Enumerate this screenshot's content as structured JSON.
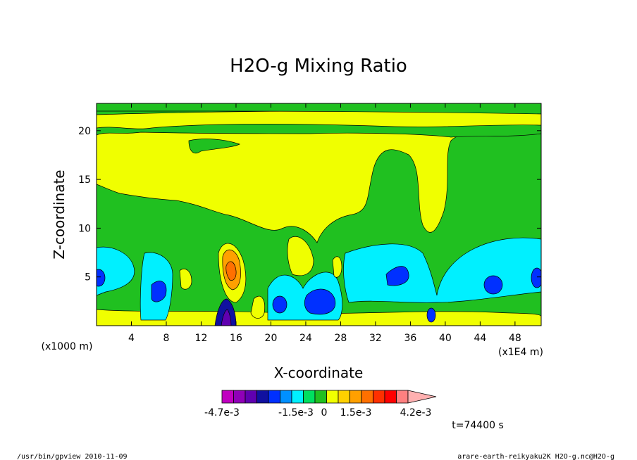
{
  "chart_data": {
    "type": "heatmap",
    "title": "H2O-g Mixing Ratio",
    "xlabel": "X-coordinate",
    "ylabel": "Z-coordinate",
    "x_unit": "(x1E4 m)",
    "y_unit": "(x1000 m)",
    "xlim": [
      0,
      51
    ],
    "ylim": [
      0,
      22.8
    ],
    "x_ticks": [
      "4",
      "8",
      "12",
      "16",
      "20",
      "24",
      "28",
      "32",
      "36",
      "40",
      "44",
      "48"
    ],
    "y_ticks": [
      "5",
      "10",
      "15",
      "20"
    ],
    "colorbar": {
      "colors": [
        "#c000c0",
        "#9000b8",
        "#6000b0",
        "#1010a0",
        "#0030ff",
        "#0090ff",
        "#00f0ff",
        "#00e060",
        "#20c020",
        "#f0ff00",
        "#ffd000",
        "#ffa000",
        "#ff7000",
        "#ff3000",
        "#ff0000",
        "#ff8080",
        "#ffb0b0"
      ],
      "labels": [
        "-4.7e-3",
        "-1.5e-3",
        "0",
        "1.5e-3",
        "4.2e-3"
      ]
    },
    "field_regions": [
      {
        "level": "green",
        "note": "background mid-levels"
      },
      {
        "level": "yellow",
        "note": "upper background 10-22"
      },
      {
        "level": "cyan",
        "note": "lower layer 0-9"
      },
      {
        "level": "blue",
        "note": "cores near 0-5"
      },
      {
        "level": "orange",
        "note": "x~15-16, z~3-8"
      }
    ],
    "grid": false
  },
  "time_label": "t=74400 s",
  "footer_left": "/usr/bin/gpview   2010-11-09",
  "footer_right": "arare-earth-reikyaku2K_H2O-g.nc@H2O-g"
}
